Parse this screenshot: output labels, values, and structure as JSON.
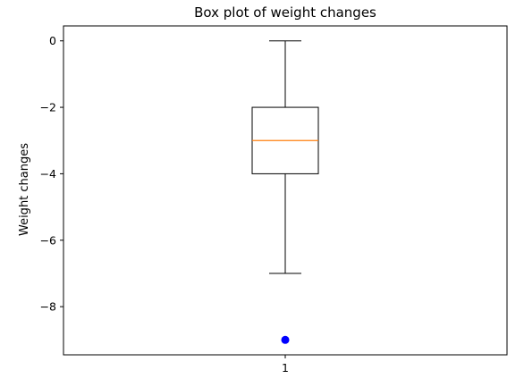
{
  "chart_data": {
    "type": "box",
    "title": "Box plot of weight changes",
    "xlabel": "",
    "ylabel": "Weight changes",
    "categories": [
      "1"
    ],
    "boxes": [
      {
        "category": "1",
        "whisker_low": -7,
        "q1": -4,
        "median": -3,
        "q3": -2,
        "whisker_high": 0,
        "outliers": [
          -9
        ]
      }
    ],
    "ylim": [
      -9.45,
      0.45
    ],
    "yticks": [
      0,
      -2,
      -4,
      -6,
      -8
    ],
    "ytick_labels": [
      "0",
      "−2",
      "−4",
      "−6",
      "−8"
    ],
    "grid": false,
    "colors": {
      "box": "#000000",
      "median": "#ff7f0e",
      "outlier": "#0000ff"
    }
  }
}
